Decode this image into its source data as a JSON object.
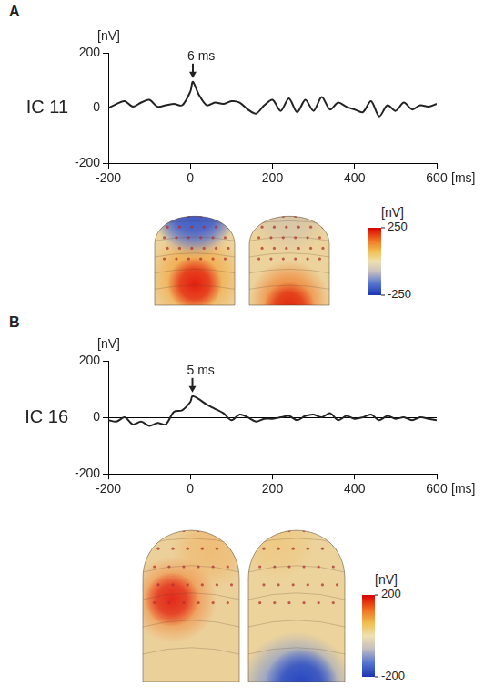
{
  "chart_data": [
    {
      "panel": "A",
      "type": "line",
      "y_label": "[nV]",
      "x_label": "[ms]",
      "x": [
        -200,
        -180,
        -160,
        -140,
        -120,
        -100,
        -80,
        -60,
        -40,
        -20,
        0,
        6,
        20,
        40,
        60,
        80,
        100,
        120,
        140,
        160,
        180,
        200,
        220,
        240,
        260,
        280,
        300,
        320,
        340,
        360,
        380,
        400,
        420,
        440,
        460,
        480,
        500,
        520,
        540,
        560,
        580,
        600
      ],
      "series": [
        {
          "name": "IC 11",
          "color": "#222222",
          "values": [
            0,
            15,
            25,
            5,
            20,
            30,
            5,
            10,
            15,
            10,
            60,
            95,
            50,
            10,
            20,
            15,
            25,
            20,
            -5,
            -20,
            10,
            30,
            -10,
            35,
            -15,
            30,
            -10,
            40,
            -5,
            20,
            5,
            -5,
            -15,
            25,
            -30,
            10,
            -10,
            20,
            -5,
            10,
            5,
            15
          ]
        }
      ],
      "xlim": [
        -200,
        600
      ],
      "xticks": [
        -200,
        0,
        200,
        400,
        600
      ],
      "ylim": [
        -200,
        200
      ],
      "yticks": [
        -200,
        0,
        200
      ],
      "annotations": [
        {
          "text": "6 ms",
          "x": 6
        }
      ],
      "colorbar": {
        "label": "[nV]",
        "range": [
          -250,
          250
        ],
        "ticks": [
          -250,
          250
        ]
      }
    },
    {
      "panel": "B",
      "type": "line",
      "y_label": "[nV]",
      "x_label": "[ms]",
      "x": [
        -200,
        -180,
        -160,
        -140,
        -120,
        -100,
        -80,
        -60,
        -40,
        -20,
        0,
        5,
        20,
        40,
        60,
        80,
        100,
        120,
        140,
        160,
        180,
        200,
        220,
        240,
        260,
        280,
        300,
        320,
        340,
        360,
        380,
        400,
        420,
        440,
        460,
        480,
        500,
        520,
        540,
        560,
        580,
        600
      ],
      "series": [
        {
          "name": "IC 16",
          "color": "#222222",
          "values": [
            -10,
            -15,
            0,
            -25,
            -15,
            -30,
            -20,
            -25,
            20,
            25,
            55,
            75,
            65,
            45,
            30,
            15,
            -10,
            10,
            0,
            -15,
            -5,
            -5,
            0,
            5,
            -10,
            5,
            10,
            0,
            15,
            -10,
            5,
            -5,
            0,
            10,
            -10,
            5,
            -5,
            0,
            -10,
            0,
            -5,
            -10
          ]
        }
      ],
      "xlim": [
        -200,
        600
      ],
      "xticks": [
        -200,
        0,
        200,
        400,
        600
      ],
      "ylim": [
        -200,
        200
      ],
      "yticks": [
        -200,
        0,
        200
      ],
      "annotations": [
        {
          "text": "5 ms",
          "x": 5
        }
      ],
      "colorbar": {
        "label": "[nV]",
        "range": [
          -200,
          200
        ],
        "ticks": [
          -200,
          200
        ]
      }
    }
  ]
}
